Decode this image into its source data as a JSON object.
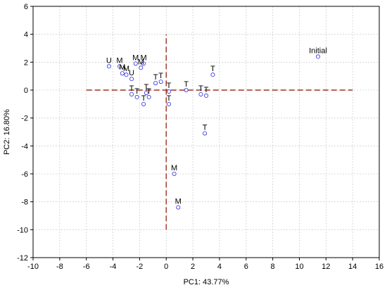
{
  "chart_data": {
    "type": "scatter",
    "xlabel": "PC1: 43.77%",
    "ylabel": "PC2: 16.80%",
    "xlim": [
      -10,
      16
    ],
    "ylim": [
      -12,
      6
    ],
    "xticks": [
      -10,
      -8,
      -6,
      -4,
      -2,
      0,
      2,
      4,
      6,
      8,
      10,
      12,
      14,
      16
    ],
    "yticks": [
      -12,
      -10,
      -8,
      -6,
      -4,
      -2,
      0,
      2,
      4,
      6
    ],
    "grid": true,
    "reference_lines": {
      "horizontal": {
        "y": 0,
        "x_from": -6,
        "x_to": 14
      },
      "vertical": {
        "x": 0,
        "y_from": -10,
        "y_to": 4
      }
    },
    "point_color": "#2a2adf",
    "reference_line_color": "#a03020",
    "points": [
      {
        "x": 11.4,
        "y": 2.4,
        "label": "Initial"
      },
      {
        "x": -4.3,
        "y": 1.7,
        "label": "U"
      },
      {
        "x": -3.5,
        "y": 1.7,
        "label": "M"
      },
      {
        "x": -3.3,
        "y": 1.2,
        "label": "M"
      },
      {
        "x": -3.0,
        "y": 1.1,
        "label": "M"
      },
      {
        "x": -2.6,
        "y": 0.8,
        "label": "U"
      },
      {
        "x": -2.3,
        "y": 1.9,
        "label": "M"
      },
      {
        "x": -1.9,
        "y": 1.6,
        "label": "M"
      },
      {
        "x": -1.7,
        "y": 1.9,
        "label": "M"
      },
      {
        "x": -2.6,
        "y": -0.3,
        "label": "T"
      },
      {
        "x": -2.2,
        "y": -0.5,
        "label": "T"
      },
      {
        "x": -1.5,
        "y": -0.2,
        "label": "T"
      },
      {
        "x": -1.3,
        "y": -0.5,
        "label": "T"
      },
      {
        "x": -1.7,
        "y": -1.0,
        "label": "T"
      },
      {
        "x": -0.8,
        "y": 0.5,
        "label": "T"
      },
      {
        "x": -0.4,
        "y": 0.6,
        "label": "T"
      },
      {
        "x": 0.2,
        "y": -0.1,
        "label": "T"
      },
      {
        "x": 0.2,
        "y": -1.0,
        "label": "T"
      },
      {
        "x": 1.5,
        "y": 0.0,
        "label": "T"
      },
      {
        "x": 2.6,
        "y": -0.3,
        "label": "T"
      },
      {
        "x": 3.0,
        "y": -0.4,
        "label": "T"
      },
      {
        "x": 3.5,
        "y": 1.1,
        "label": "T"
      },
      {
        "x": 2.9,
        "y": -3.1,
        "label": "T"
      },
      {
        "x": 0.6,
        "y": -6.0,
        "label": "M"
      },
      {
        "x": 0.9,
        "y": -8.4,
        "label": "M"
      }
    ]
  }
}
